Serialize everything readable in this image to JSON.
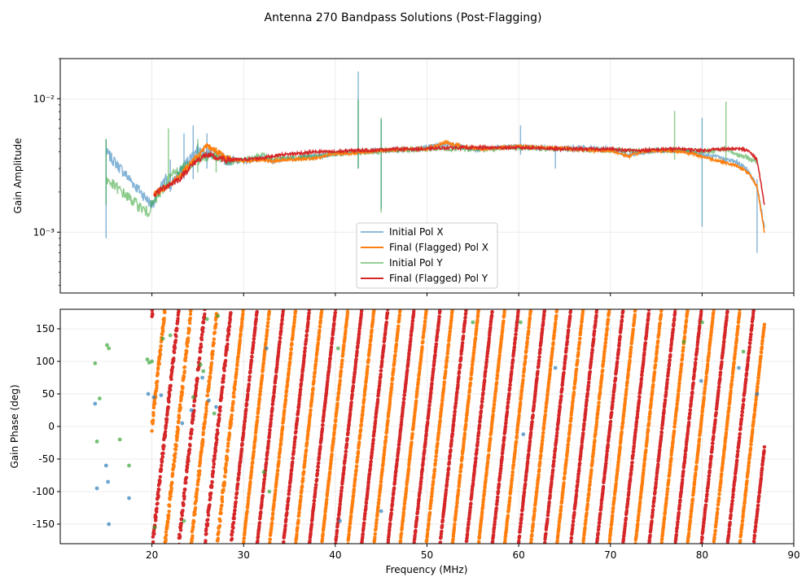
{
  "figure_title": "Antenna 270 Bandpass Solutions (Post-Flagging)",
  "chart_data": [
    {
      "type": "line",
      "name": "amplitude-panel",
      "ylabel": "Gain Amplitude",
      "xlabel": "",
      "yscale": "log",
      "xlim": [
        10,
        90
      ],
      "ylim": [
        0.00035,
        0.02
      ],
      "yticks": [
        0.001,
        0.01
      ],
      "ytick_labels": [
        "10⁻³",
        "10⁻²"
      ],
      "grid": true,
      "legend": {
        "placement": "bottom-center",
        "entries": [
          "Initial Pol X",
          "Final (Flagged) Pol X",
          "Initial Pol Y",
          "Final (Flagged) Pol Y"
        ]
      },
      "series": [
        {
          "name": "Initial Pol X",
          "color": "#1f77b4",
          "x": [
            15,
            20,
            21.5,
            22,
            23,
            24,
            25,
            26,
            27,
            28,
            30,
            32,
            33,
            35,
            38,
            40,
            42.5,
            45,
            48,
            50,
            52,
            55,
            58,
            60,
            62,
            64,
            66,
            70,
            72,
            75,
            78,
            80,
            82,
            84,
            85,
            86,
            86.8
          ],
          "y": [
            0.004,
            0.0016,
            0.0025,
            0.0022,
            0.0028,
            0.0035,
            0.0042,
            0.004,
            0.0039,
            0.0035,
            0.0034,
            0.0036,
            0.0034,
            0.0036,
            0.0037,
            0.0039,
            0.004,
            0.0041,
            0.0042,
            0.0043,
            0.0046,
            0.0042,
            0.0043,
            0.0044,
            0.0043,
            0.0042,
            0.0043,
            0.0042,
            0.0038,
            0.0041,
            0.0041,
            0.0038,
            0.0036,
            0.0033,
            0.0029,
            0.0022,
            0.0011
          ],
          "spikes": [
            [
              15,
              0.0009,
              0.005
            ],
            [
              22,
              0.002,
              0.0035
            ],
            [
              23.5,
              0.0025,
              0.0055
            ],
            [
              24.5,
              0.0025,
              0.0063
            ],
            [
              26,
              0.003,
              0.0055
            ],
            [
              42.5,
              0.003,
              0.016
            ],
            [
              45,
              0.0015,
              0.007
            ],
            [
              60.2,
              0.0038,
              0.0063
            ],
            [
              64,
              0.003,
              0.0042
            ],
            [
              80,
              0.0011,
              0.0072
            ],
            [
              86,
              0.0007,
              0.0025
            ]
          ]
        },
        {
          "name": "Final (Flagged) Pol X",
          "color": "#ff7f0e",
          "x": [
            20.2,
            21,
            22,
            23,
            24,
            25,
            26,
            27,
            28,
            30,
            32,
            33,
            35,
            38,
            40,
            42,
            45,
            48,
            50,
            52,
            54,
            56,
            58,
            60,
            62,
            64,
            66,
            68,
            70,
            72,
            74,
            76,
            78,
            80,
            82,
            84,
            85,
            86,
            86.8
          ],
          "y": [
            0.0019,
            0.0021,
            0.0023,
            0.0026,
            0.0032,
            0.0037,
            0.0044,
            0.0041,
            0.0036,
            0.0034,
            0.0035,
            0.0034,
            0.0035,
            0.0036,
            0.0039,
            0.0039,
            0.0041,
            0.0042,
            0.0042,
            0.0047,
            0.0044,
            0.0042,
            0.0043,
            0.0044,
            0.0043,
            0.0043,
            0.0042,
            0.0041,
            0.0041,
            0.0037,
            0.0041,
            0.0041,
            0.004,
            0.0037,
            0.0034,
            0.0031,
            0.0028,
            0.0022,
            0.001
          ]
        },
        {
          "name": "Initial Pol Y",
          "color": "#2ca02c",
          "x": [
            15,
            19.5,
            20,
            21,
            21.8,
            22.5,
            23.5,
            24.5,
            25.5,
            26.5,
            27.5,
            28.5,
            30,
            32,
            33,
            35,
            38,
            40,
            42.5,
            44.8,
            45,
            50,
            55,
            60,
            65,
            70,
            75,
            77,
            80,
            82.6,
            84,
            86
          ],
          "y": [
            0.0025,
            0.0014,
            0.0016,
            0.002,
            0.0025,
            0.0028,
            0.003,
            0.0034,
            0.0036,
            0.0038,
            0.0035,
            0.0034,
            0.0035,
            0.0038,
            0.0035,
            0.0036,
            0.0037,
            0.0039,
            0.004,
            0.004,
            0.0041,
            0.0042,
            0.0042,
            0.0043,
            0.0042,
            0.0041,
            0.0041,
            0.0041,
            0.004,
            0.0042,
            0.0038,
            0.0034
          ],
          "spikes": [
            [
              15,
              0.0016,
              0.005
            ],
            [
              21.8,
              0.0022,
              0.006
            ],
            [
              25,
              0.0028,
              0.005
            ],
            [
              27,
              0.0028,
              0.0042
            ],
            [
              42.5,
              0.003,
              0.0098
            ],
            [
              45,
              0.0014,
              0.0072
            ],
            [
              77,
              0.0035,
              0.0081
            ],
            [
              82.6,
              0.0035,
              0.0095
            ]
          ]
        },
        {
          "name": "Final (Flagged) Pol Y",
          "color": "#d62728",
          "x": [
            20.2,
            21,
            22,
            23,
            24,
            25,
            26,
            27,
            28,
            30,
            32,
            34,
            36,
            38,
            40,
            42,
            44,
            46,
            48,
            50,
            52,
            54,
            56,
            58,
            60,
            62,
            64,
            66,
            68,
            70,
            72,
            74,
            76,
            78,
            80,
            82,
            84,
            85,
            86,
            86.8
          ],
          "y": [
            0.0019,
            0.0021,
            0.0023,
            0.0025,
            0.003,
            0.0035,
            0.0038,
            0.0036,
            0.0035,
            0.0035,
            0.0036,
            0.0038,
            0.0039,
            0.004,
            0.004,
            0.0041,
            0.0041,
            0.0042,
            0.0042,
            0.0042,
            0.0043,
            0.0043,
            0.0043,
            0.0043,
            0.0043,
            0.0043,
            0.0042,
            0.0042,
            0.0042,
            0.0042,
            0.0041,
            0.0041,
            0.0042,
            0.0042,
            0.0041,
            0.0042,
            0.0042,
            0.0041,
            0.0035,
            0.0016
          ]
        }
      ]
    },
    {
      "type": "scatter",
      "name": "phase-panel",
      "xlabel": "Frequency (MHz)",
      "ylabel": "Gain Phase (deg)",
      "xlim": [
        10,
        90
      ],
      "ylim": [
        -180,
        180
      ],
      "xticks": [
        20,
        30,
        40,
        50,
        60,
        70,
        80,
        90
      ],
      "yticks": [
        -150,
        -100,
        -50,
        0,
        50,
        100,
        150
      ],
      "grid": true,
      "series": [
        {
          "name": "Final (Flagged) Pol X",
          "color": "#ff7f0e",
          "x_start": 20,
          "x_end": 86.8,
          "wrap_period_mhz": 2.85,
          "phase_offset": 0
        },
        {
          "name": "Final (Flagged) Pol Y",
          "color": "#d62728",
          "x_start": 20,
          "x_end": 86.8,
          "wrap_period_mhz": 2.85,
          "phase_offset": 170
        },
        {
          "name": "Initial Pol X",
          "color": "#1f77b4",
          "x": [
            13.8,
            14,
            15,
            15.2,
            15.3,
            17.5,
            19.6,
            20.2,
            21,
            23.3,
            24.3,
            25.5,
            26.2,
            27,
            32.5,
            40.5,
            45,
            60.5,
            64,
            79.9,
            84,
            86
          ],
          "y": [
            35,
            -95,
            -60,
            -85,
            -150,
            -110,
            50,
            45,
            48,
            5,
            25,
            75,
            40,
            30,
            120,
            -145,
            -130,
            -12,
            90,
            70,
            90,
            50
          ]
        },
        {
          "name": "Initial Pol Y",
          "color": "#2ca02c",
          "x": [
            13.8,
            14,
            14.3,
            15.1,
            15.3,
            16.5,
            17.5,
            19.5,
            19.7,
            20,
            20.3,
            21.2,
            22,
            23.5,
            24.5,
            25.3,
            25.6,
            26,
            26.8,
            27.2,
            32.2,
            32.8,
            40.3,
            55,
            60.2,
            78,
            80,
            84.5
          ],
          "y": [
            97,
            -23,
            43,
            125,
            120,
            -20,
            -60,
            103,
            98,
            100,
            -155,
            135,
            140,
            -145,
            45,
            95,
            85,
            165,
            20,
            170,
            -70,
            -100,
            120,
            160,
            160,
            130,
            160,
            115
          ]
        }
      ]
    }
  ]
}
